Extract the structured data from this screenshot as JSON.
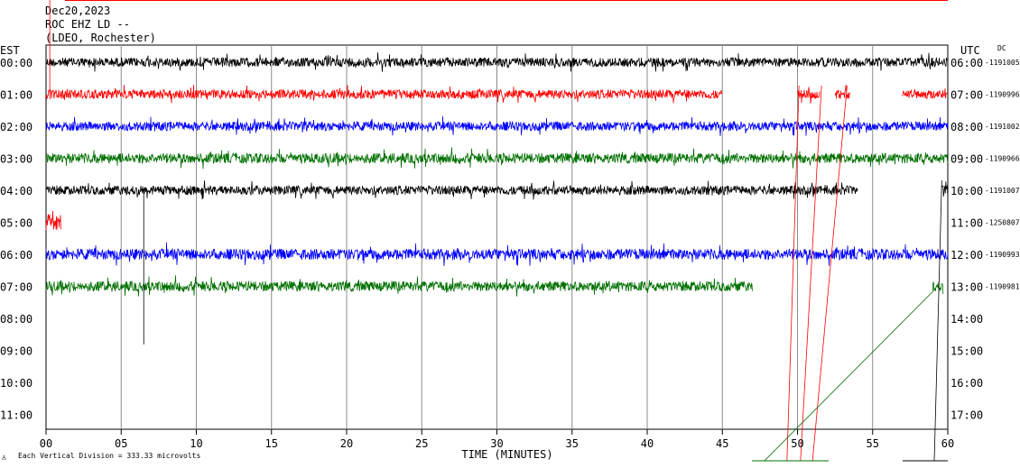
{
  "header": {
    "date": "Dec20,2023",
    "channel": "ROC EHZ LD --",
    "network": "(LDEO, Rochester)"
  },
  "footer": {
    "scale_note": "Each Vertical Division = 333.33 microvolts"
  },
  "chart_data": {
    "type": "line",
    "xlabel": "TIME (MINUTES)",
    "left_axis_label": "EST",
    "right_axis_label": "UTC",
    "right_col_label": "DC",
    "xlim": [
      0,
      60
    ],
    "x_ticks": [
      "00",
      "05",
      "10",
      "15",
      "20",
      "25",
      "30",
      "35",
      "40",
      "45",
      "50",
      "55",
      "60"
    ],
    "rows": [
      {
        "est": "00:00",
        "utc": "06:00",
        "dc": "-1191005",
        "color": "#000000",
        "segments": [
          [
            0,
            60
          ]
        ],
        "amp": 1.0
      },
      {
        "est": "01:00",
        "utc": "07:00",
        "dc": "-1190996",
        "color": "#ff0000",
        "segments": [
          [
            0,
            45
          ],
          [
            50,
            51.5
          ],
          [
            52.5,
            53.5
          ],
          [
            57,
            60
          ]
        ],
        "amp": 1.0
      },
      {
        "est": "02:00",
        "utc": "08:00",
        "dc": "-1191002",
        "color": "#0000ff",
        "segments": [
          [
            0,
            60
          ]
        ],
        "amp": 1.0
      },
      {
        "est": "03:00",
        "utc": "09:00",
        "dc": "-1190966",
        "color": "#007000",
        "segments": [
          [
            0,
            60
          ]
        ],
        "amp": 1.1
      },
      {
        "est": "04:00",
        "utc": "10:00",
        "dc": "-1191007",
        "color": "#000000",
        "segments": [
          [
            0,
            54
          ],
          [
            59.6,
            60
          ]
        ],
        "amp": 1.0
      },
      {
        "est": "05:00",
        "utc": "11:00",
        "dc": "-1250807",
        "color": "#ff0000",
        "segments": [
          [
            0,
            1
          ]
        ],
        "amp": 1.8
      },
      {
        "est": "06:00",
        "utc": "12:00",
        "dc": "-1190993",
        "color": "#0000ff",
        "segments": [
          [
            0,
            60
          ]
        ],
        "amp": 1.2
      },
      {
        "est": "07:00",
        "utc": "13:00",
        "dc": "-1190981",
        "color": "#007000",
        "segments": [
          [
            0,
            47
          ],
          [
            59.0,
            59.7
          ]
        ],
        "amp": 1.1
      },
      {
        "est": "08:00",
        "utc": "14:00",
        "dc": "",
        "color": "#000000",
        "segments": [],
        "amp": 0
      },
      {
        "est": "09:00",
        "utc": "15:00",
        "dc": "",
        "color": "#ff0000",
        "segments": [],
        "amp": 0
      },
      {
        "est": "10:00",
        "utc": "16:00",
        "dc": "",
        "color": "#0000ff",
        "segments": [],
        "amp": 0
      },
      {
        "est": "11:00",
        "utc": "17:00",
        "dc": "",
        "color": "#007000",
        "segments": [],
        "amp": 0
      }
    ]
  }
}
